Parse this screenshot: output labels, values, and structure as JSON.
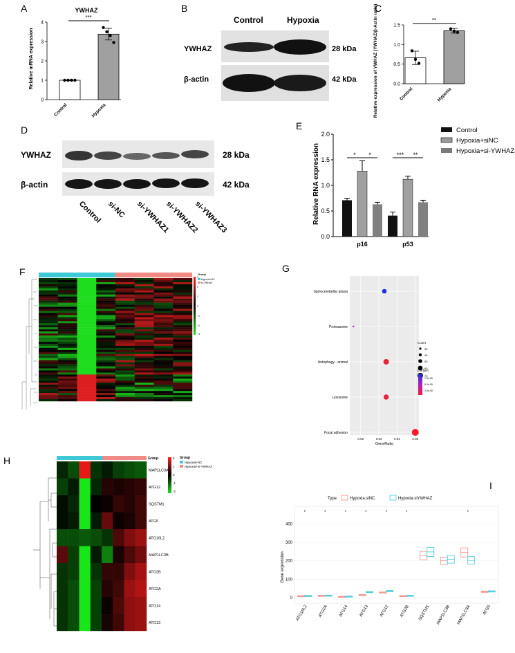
{
  "panel_labels": [
    "A",
    "B",
    "C",
    "D",
    "E",
    "F",
    "G",
    "H",
    "I"
  ],
  "colors": {
    "accent_cyan": "#3ec9d6",
    "accent_salmon": "#f08a84",
    "bar_grey": "#a0a0a0",
    "bar_dark": "#111111",
    "dot_red": "#e8223a",
    "dot_blue": "#2233dd",
    "dot_purple": "#b020c0"
  },
  "A": {
    "title": "YWHAZ",
    "ylabel": "Relative mRNA expression",
    "sig": "***"
  },
  "B": {
    "col1": "Control",
    "col2": "Hypoxia",
    "row1": "YWHAZ",
    "row2": "β-actin",
    "kda1": "28 kDa",
    "kda2": "42 kDa"
  },
  "C": {
    "ylabel": "Relative expression of YWHAZ (YWHAZ/β-Actin ratio)",
    "sig": "**"
  },
  "D": {
    "row1": "YWHAZ",
    "row2": "β-actin",
    "kda1": "28 kDa",
    "kda2": "42 kDa",
    "lanes": [
      "Control",
      "si-NC",
      "si-YWHAZ1",
      "si-YWHAZ2",
      "si-YWHAZ3"
    ]
  },
  "E": {
    "ylabel": "Relative RNA expression",
    "legend": [
      "Control",
      "Hypoxia+siNC",
      "Hypoxia+si-YWHAZ"
    ],
    "sigs": [
      "*",
      "*",
      "***",
      "**"
    ]
  },
  "F": {
    "legend_title": "Group",
    "legend_items": [
      "Hypoxia+NC",
      "si-YWHAZ"
    ],
    "scale_ticks": [
      "3",
      "2",
      "1",
      "0",
      "−1",
      "−2",
      "−3"
    ]
  },
  "G": {
    "xlabel": "GeneRatio",
    "size_title": "Count",
    "sizes": [
      "30",
      "40",
      "50",
      "60",
      "70"
    ],
    "color_title": "p.adjust",
    "color_ticks": [
      "7.5e-05",
      "5.0e-05",
      "2.5e-05"
    ]
  },
  "H": {
    "group_label": "Group",
    "legend_title": "Group",
    "legend_items": [
      "Hypoxia+NC",
      "Hypoxia+si-YWHAZ"
    ],
    "genes": [
      "MAP1LC3A",
      "ATG12",
      "SQSTM1",
      "ATG5",
      "ATG16L2",
      "MAP1LC3B",
      "ATG2B",
      "ATG2A",
      "ATG14",
      "ATG13"
    ],
    "scale_ticks": [
      "2",
      "1",
      "0",
      "-1",
      "-2"
    ]
  },
  "I": {
    "legend_type": "Type",
    "legend_items": [
      "Hypoxia.siNC",
      "Hypoxia.siYWHAZ"
    ],
    "ylabel": "Gene expression",
    "sig": "*"
  },
  "chart_data": [
    {
      "panel": "A",
      "type": "bar",
      "title": "YWHAZ",
      "ylabel": "Relative mRNA expression",
      "categories": [
        "Control",
        "Hypoxia"
      ],
      "values": [
        1.0,
        3.38
      ],
      "errors": [
        0.02,
        0.3
      ],
      "ylim": [
        0,
        4
      ],
      "yticks": [
        "0",
        "1",
        "2",
        "3",
        "4"
      ],
      "points": [
        [
          1.0,
          1.0,
          1.0,
          1.0
        ],
        [
          3.72,
          3.5,
          3.3,
          2.95
        ]
      ]
    },
    {
      "panel": "C",
      "type": "bar",
      "ylabel": "Relative expression of YWHAZ (YWHAZ/β-Actin ratio)",
      "categories": [
        "Control",
        "Hypoxia"
      ],
      "values": [
        0.66,
        1.35
      ],
      "errors": [
        0.17,
        0.06
      ],
      "ylim": [
        0,
        1.5
      ],
      "yticks": [
        "0.0",
        "0.5",
        "1.0",
        "1.5"
      ],
      "points": [
        [
          0.84,
          0.62,
          0.52
        ],
        [
          1.4,
          1.34,
          1.31
        ]
      ]
    },
    {
      "panel": "E",
      "type": "bar",
      "ylabel": "Relative RNA expression",
      "categories": [
        "p16",
        "p53"
      ],
      "series": [
        {
          "name": "Control",
          "values": [
            0.71,
            0.41
          ],
          "errors": [
            0.04,
            0.07
          ]
        },
        {
          "name": "Hypoxia+siNC",
          "values": [
            1.28,
            1.12
          ],
          "errors": [
            0.2,
            0.06
          ]
        },
        {
          "name": "Hypoxia+si-YWHAZ",
          "values": [
            0.63,
            0.67
          ],
          "errors": [
            0.04,
            0.04
          ]
        }
      ],
      "ylim": [
        0,
        2.0
      ],
      "yticks": [
        "0.0",
        "0.5",
        "1.0",
        "1.5",
        "2.0"
      ]
    },
    {
      "panel": "G",
      "type": "scatter",
      "xlabel": "GeneRatio",
      "categories": [
        "Spinocerebellar ataxia",
        "Proteasome",
        "Autophagy - animal",
        "Lysosome",
        "Focal adhesion"
      ],
      "x": [
        0.033,
        0.016,
        0.034,
        0.034,
        0.05
      ],
      "count": [
        52,
        28,
        60,
        57,
        72
      ],
      "p_adjust": [
        9e-05,
        6e-05,
        2e-05,
        2e-05,
        1e-05
      ],
      "xlim": [
        0.014,
        0.052
      ],
      "xticks": [
        "0.02",
        "0.03",
        "0.04",
        "0.05"
      ]
    },
    {
      "panel": "I",
      "type": "box",
      "ylabel": "Gene expression",
      "categories": [
        "ATG16L2",
        "ATG2A",
        "ATG14",
        "ATG13",
        "ATG12",
        "ATG2B",
        "SQSTM1",
        "MAP1LC3B",
        "MAP1LC3A",
        "ATG5"
      ],
      "series": [
        {
          "name": "Hypoxia.siNC",
          "medians": [
            8,
            10,
            4,
            14,
            28,
            8,
            228,
            200,
            245,
            32
          ]
        },
        {
          "name": "Hypoxia.siYWHAZ",
          "medians": [
            9,
            11,
            6,
            30,
            36,
            10,
            248,
            208,
            202,
            34
          ]
        }
      ],
      "ylim": [
        0,
        450
      ],
      "yticks": [
        "0",
        "100",
        "200",
        "300",
        "400"
      ],
      "sig_markers": [
        true,
        true,
        true,
        true,
        true,
        true,
        false,
        false,
        true,
        false
      ]
    }
  ]
}
